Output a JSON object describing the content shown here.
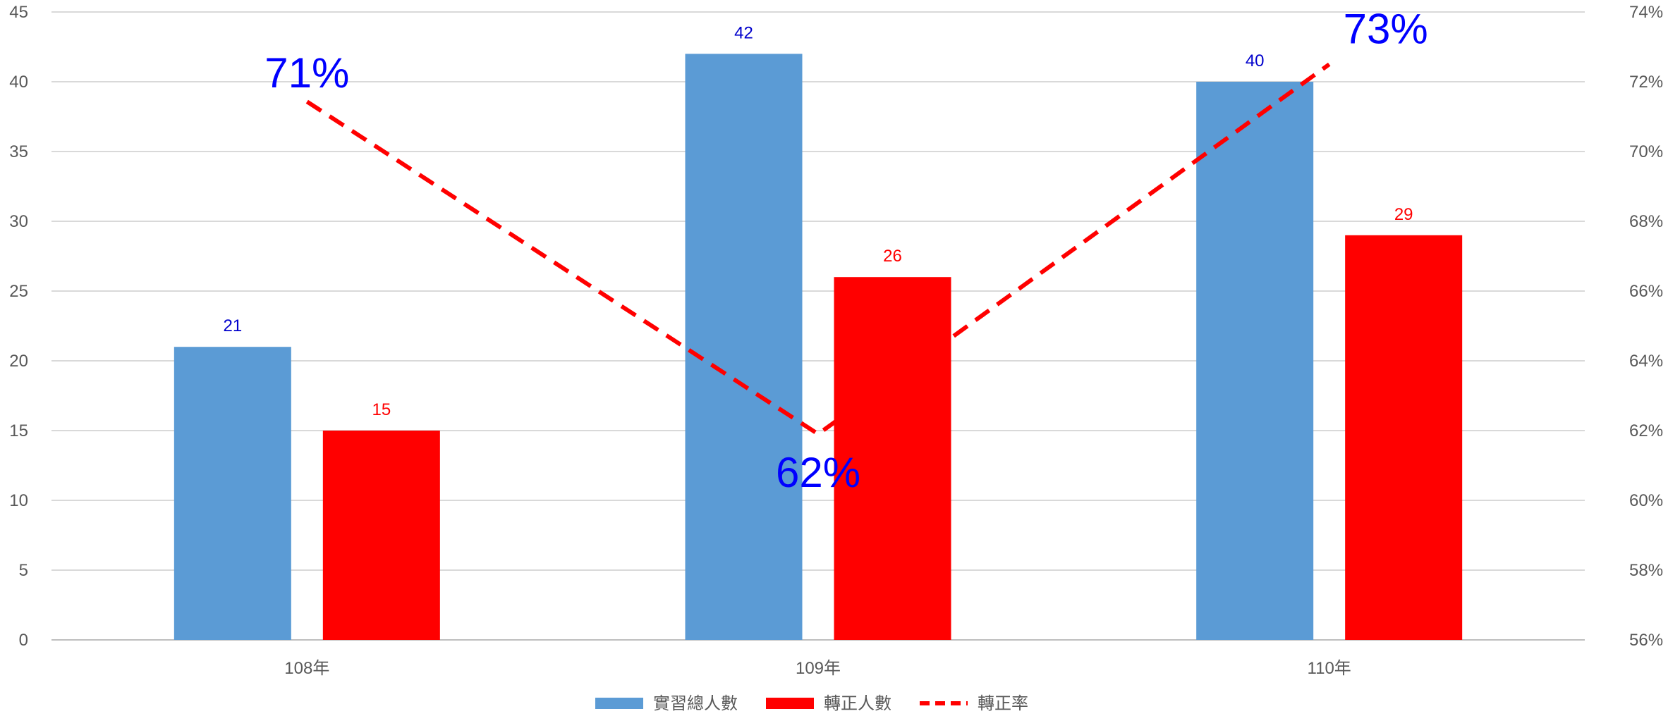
{
  "chart_data": {
    "type": "bar",
    "categories": [
      "108年",
      "109年",
      "110年"
    ],
    "series": [
      {
        "name": "實習總人數",
        "kind": "bar",
        "axis": "left",
        "color": "#5B9BD5",
        "label_color": "#0000CC",
        "values": [
          21,
          42,
          40
        ]
      },
      {
        "name": "轉正人數",
        "kind": "bar",
        "axis": "left",
        "color": "#FF0000",
        "label_color": "#FF0000",
        "values": [
          15,
          26,
          29
        ]
      },
      {
        "name": "轉正率",
        "kind": "line",
        "axis": "right",
        "color": "#FF0000",
        "line_style": "dashed",
        "label_color": "#0000FF",
        "values": [
          0.7143,
          0.619,
          0.725
        ],
        "labels": [
          "71%",
          "62%",
          "73%"
        ]
      }
    ],
    "y_left": {
      "min": 0,
      "max": 45,
      "step": 5
    },
    "y_right": {
      "min": 0.56,
      "max": 0.74,
      "step": 0.02,
      "format": "percent"
    },
    "grid": true,
    "legend_position": "bottom"
  }
}
